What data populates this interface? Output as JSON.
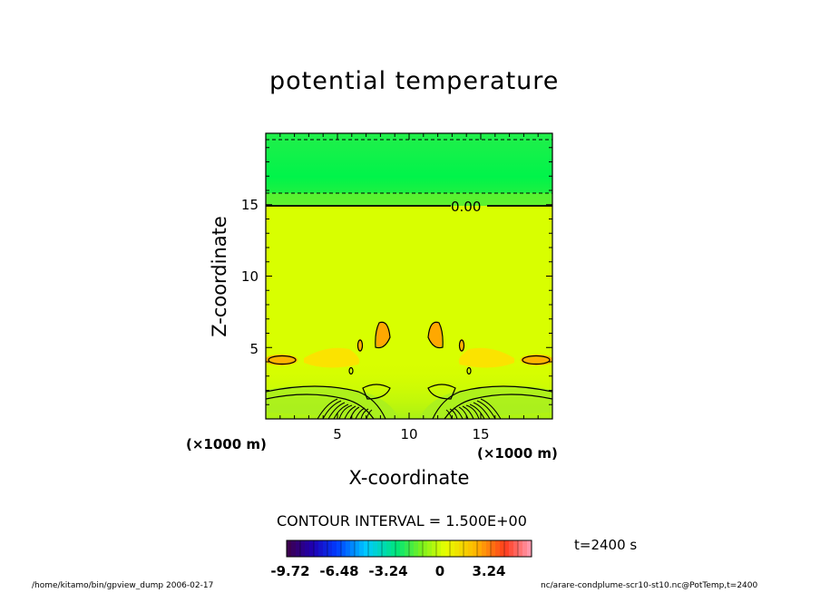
{
  "chart_data": {
    "type": "heatmap",
    "title": "potential temperature",
    "xlabel": "X-coordinate",
    "ylabel": "Z-coordinate",
    "x_unit": "(×1000 m)",
    "y_unit": "(×1000 m)",
    "xlim": [
      0,
      20
    ],
    "ylim": [
      0,
      20
    ],
    "x_ticks": [
      "5",
      "10",
      "15"
    ],
    "y_ticks": [
      "5",
      "10",
      "15"
    ],
    "contour_label": "0.00",
    "contour_interval": "CONTOUR INTERVAL = 1.500E+00",
    "time_label": "t=2400 s",
    "colorbar": {
      "tick_labels": [
        "-9.72",
        "-6.48",
        "-3.24",
        "0",
        "3.24"
      ],
      "min": -9.72,
      "max": 6.48
    },
    "colors": {
      "background_field": "#d8ff00",
      "upper_layer": "#22f050",
      "warm_anomaly": "#ffc000"
    }
  },
  "footer": {
    "left": "/home/kitamo/bin/gpview_dump  2006-02-17",
    "right": "nc/arare-condplume-scr10-st10.nc@PotTemp,t=2400"
  }
}
